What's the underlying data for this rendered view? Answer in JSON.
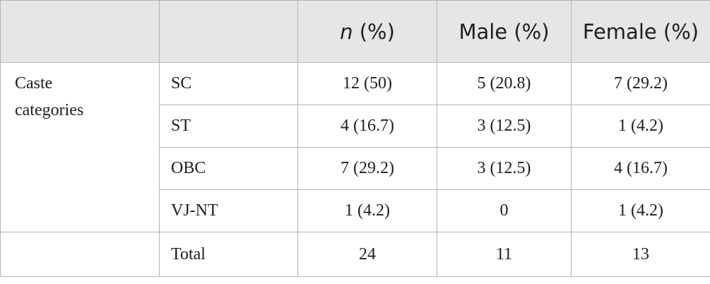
{
  "header": {
    "n_label": "n",
    "n_suffix": " (%)",
    "male": "Male (%)",
    "female": "Female (%)"
  },
  "group": {
    "label_line1": "Caste",
    "label_line2": "categories"
  },
  "rows": [
    {
      "category": "SC",
      "n": "12 (50)",
      "male": "5 (20.8)",
      "female": "7 (29.2)"
    },
    {
      "category": "ST",
      "n": "4 (16.7)",
      "male": "3 (12.5)",
      "female": "1 (4.2)"
    },
    {
      "category": "OBC",
      "n": "7 (29.2)",
      "male": "3 (12.5)",
      "female": "4 (16.7)"
    },
    {
      "category": "VJ-NT",
      "n": "1 (4.2)",
      "male": "0",
      "female": "1 (4.2)"
    }
  ],
  "total": {
    "label": "Total",
    "n": "24",
    "male": "11",
    "female": "13"
  }
}
